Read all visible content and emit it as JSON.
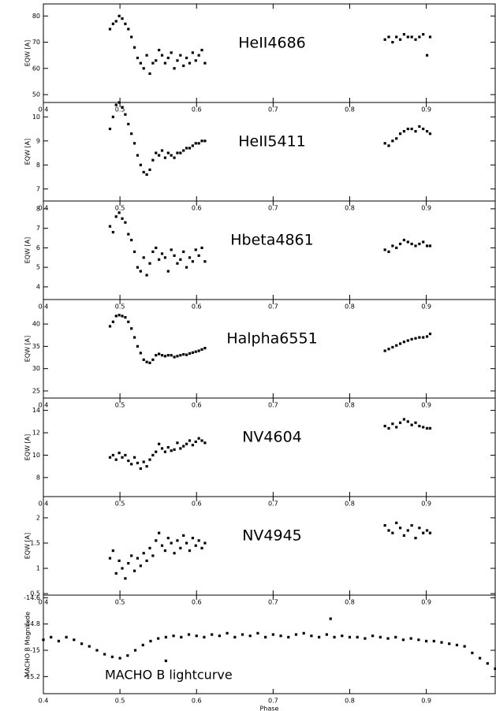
{
  "chart_data": [
    {
      "type": "scatter",
      "title": "HeII4686",
      "ylabel": "EQW [A]",
      "color": "#000000",
      "xlim": [
        0.4,
        0.99
      ],
      "ylim": [
        47,
        84.6
      ],
      "xticks": [
        0.4,
        0.5,
        0.6,
        0.7,
        0.8,
        0.9
      ],
      "yticks": [
        50,
        60,
        70,
        80
      ],
      "x": [
        0.487,
        0.491,
        0.495,
        0.499,
        0.503,
        0.507,
        0.511,
        0.515,
        0.519,
        0.523,
        0.527,
        0.531,
        0.535,
        0.539,
        0.543,
        0.547,
        0.551,
        0.555,
        0.559,
        0.563,
        0.567,
        0.571,
        0.575,
        0.579,
        0.583,
        0.587,
        0.591,
        0.595,
        0.599,
        0.603,
        0.607,
        0.611,
        0.846,
        0.851,
        0.856,
        0.861,
        0.866,
        0.871,
        0.876,
        0.881,
        0.886,
        0.891,
        0.896,
        0.901,
        0.905
      ],
      "y": [
        75,
        77,
        78,
        80,
        79,
        77,
        75,
        72,
        68,
        64,
        62,
        60,
        65,
        58,
        62,
        63,
        67,
        65,
        62,
        64,
        66,
        60,
        63,
        65,
        61,
        64,
        62,
        66,
        63,
        65,
        67,
        62,
        71,
        72,
        70,
        72,
        71,
        73,
        72,
        72,
        71,
        72,
        73,
        65,
        72
      ]
    },
    {
      "type": "scatter",
      "title": "HeII5411",
      "ylabel": "EQW [A]",
      "color": "#000000",
      "xlim": [
        0.4,
        0.99
      ],
      "ylim": [
        6.5,
        10.6
      ],
      "xticks": [
        0.4,
        0.5,
        0.6,
        0.7,
        0.8,
        0.9
      ],
      "yticks": [
        7,
        8,
        9,
        10
      ],
      "x": [
        0.487,
        0.491,
        0.495,
        0.499,
        0.503,
        0.507,
        0.511,
        0.515,
        0.519,
        0.523,
        0.527,
        0.531,
        0.535,
        0.539,
        0.543,
        0.547,
        0.551,
        0.555,
        0.559,
        0.563,
        0.567,
        0.571,
        0.575,
        0.579,
        0.583,
        0.587,
        0.591,
        0.595,
        0.599,
        0.603,
        0.607,
        0.611,
        0.846,
        0.851,
        0.856,
        0.861,
        0.866,
        0.871,
        0.876,
        0.881,
        0.886,
        0.891,
        0.896,
        0.901,
        0.905
      ],
      "y": [
        9.5,
        10.0,
        10.5,
        10.6,
        10.4,
        10.1,
        9.7,
        9.3,
        8.9,
        8.4,
        8.0,
        7.7,
        7.6,
        7.8,
        8.2,
        8.5,
        8.4,
        8.6,
        8.3,
        8.5,
        8.4,
        8.3,
        8.5,
        8.5,
        8.6,
        8.7,
        8.7,
        8.8,
        8.9,
        8.9,
        9.0,
        9.0,
        8.9,
        8.8,
        9.0,
        9.1,
        9.3,
        9.4,
        9.5,
        9.5,
        9.4,
        9.6,
        9.5,
        9.4,
        9.3
      ]
    },
    {
      "type": "scatter",
      "title": "Hbeta4861",
      "ylabel": "EQW [A]",
      "color": "#000000",
      "xlim": [
        0.4,
        0.99
      ],
      "ylim": [
        3.35,
        8.4
      ],
      "xticks": [
        0.4,
        0.5,
        0.6,
        0.7,
        0.8,
        0.9
      ],
      "yticks": [
        4,
        5,
        6,
        7,
        8
      ],
      "x": [
        0.487,
        0.491,
        0.495,
        0.499,
        0.503,
        0.507,
        0.511,
        0.515,
        0.519,
        0.523,
        0.527,
        0.531,
        0.535,
        0.539,
        0.543,
        0.547,
        0.551,
        0.555,
        0.559,
        0.563,
        0.567,
        0.571,
        0.575,
        0.579,
        0.583,
        0.587,
        0.591,
        0.595,
        0.599,
        0.603,
        0.607,
        0.611,
        0.846,
        0.851,
        0.856,
        0.861,
        0.866,
        0.871,
        0.876,
        0.881,
        0.886,
        0.891,
        0.896,
        0.901,
        0.905
      ],
      "y": [
        7.1,
        6.8,
        7.6,
        7.8,
        7.5,
        7.3,
        6.7,
        6.4,
        5.8,
        5.0,
        4.8,
        5.5,
        4.6,
        5.2,
        5.8,
        6.0,
        5.4,
        5.7,
        5.5,
        4.8,
        5.9,
        5.6,
        5.2,
        5.4,
        5.8,
        5.0,
        5.5,
        5.3,
        5.9,
        5.6,
        6.0,
        5.3,
        5.9,
        5.8,
        6.1,
        6.0,
        6.2,
        6.4,
        6.3,
        6.2,
        6.1,
        6.2,
        6.3,
        6.1,
        6.1
      ]
    },
    {
      "type": "scatter",
      "title": "Halpha6551",
      "ylabel": "EQW [A]",
      "color": "#000000",
      "xlim": [
        0.4,
        0.99
      ],
      "ylim": [
        23.4,
        45.5
      ],
      "xticks": [
        0.4,
        0.5,
        0.6,
        0.7,
        0.8,
        0.9
      ],
      "yticks": [
        25,
        30,
        35,
        40
      ],
      "x": [
        0.487,
        0.491,
        0.495,
        0.499,
        0.503,
        0.507,
        0.511,
        0.515,
        0.519,
        0.523,
        0.527,
        0.531,
        0.535,
        0.539,
        0.543,
        0.547,
        0.551,
        0.555,
        0.559,
        0.563,
        0.567,
        0.571,
        0.575,
        0.579,
        0.583,
        0.587,
        0.591,
        0.595,
        0.599,
        0.603,
        0.607,
        0.611,
        0.846,
        0.851,
        0.856,
        0.861,
        0.866,
        0.871,
        0.876,
        0.881,
        0.886,
        0.891,
        0.896,
        0.901,
        0.905
      ],
      "y": [
        39.5,
        40.5,
        41.8,
        42,
        41.8,
        41.5,
        40.5,
        39,
        37,
        35,
        33.5,
        32,
        31.5,
        31.3,
        32,
        33,
        33.3,
        33,
        32.8,
        33,
        33,
        32.6,
        32.8,
        33,
        33.2,
        33.1,
        33.4,
        33.6,
        33.8,
        34,
        34.3,
        34.6,
        34,
        34.4,
        34.8,
        35.2,
        35.6,
        36,
        36.3,
        36.6,
        36.8,
        37,
        37,
        37.2,
        37.8
      ]
    },
    {
      "type": "scatter",
      "title": "NV4604",
      "ylabel": "EQW [A]",
      "color": "#000000",
      "xlim": [
        0.4,
        0.99
      ],
      "ylim": [
        6.3,
        15.1
      ],
      "xticks": [
        0.4,
        0.5,
        0.6,
        0.7,
        0.8,
        0.9
      ],
      "yticks": [
        8,
        10,
        12,
        14
      ],
      "x": [
        0.487,
        0.491,
        0.495,
        0.499,
        0.503,
        0.507,
        0.511,
        0.515,
        0.519,
        0.523,
        0.527,
        0.531,
        0.535,
        0.539,
        0.543,
        0.547,
        0.551,
        0.555,
        0.559,
        0.563,
        0.567,
        0.571,
        0.575,
        0.579,
        0.583,
        0.587,
        0.591,
        0.595,
        0.599,
        0.603,
        0.607,
        0.611,
        0.846,
        0.851,
        0.856,
        0.861,
        0.866,
        0.871,
        0.876,
        0.881,
        0.886,
        0.891,
        0.896,
        0.901,
        0.905
      ],
      "y": [
        9.8,
        10,
        9.6,
        10.2,
        9.8,
        10,
        9.5,
        9.2,
        9.8,
        9.3,
        8.8,
        9.4,
        9,
        9.6,
        10,
        10.3,
        11,
        10.6,
        10.3,
        10.7,
        10.4,
        10.5,
        11.1,
        10.6,
        10.8,
        11,
        11.3,
        10.9,
        11.2,
        11.5,
        11.3,
        11.1,
        12.6,
        12.4,
        12.8,
        12.5,
        12.9,
        13.2,
        13,
        12.7,
        12.9,
        12.6,
        12.5,
        12.4,
        12.4
      ]
    },
    {
      "type": "scatter",
      "title": "NV4945",
      "ylabel": "EQW [A]",
      "color": "#000000",
      "xlim": [
        0.4,
        0.99
      ],
      "ylim": [
        0.47,
        2.42
      ],
      "xticks": [
        0.4,
        0.5,
        0.6,
        0.7,
        0.8,
        0.9
      ],
      "yticks": [
        0.5,
        1,
        1.5,
        2
      ],
      "x": [
        0.487,
        0.491,
        0.495,
        0.499,
        0.503,
        0.507,
        0.511,
        0.515,
        0.519,
        0.523,
        0.527,
        0.531,
        0.535,
        0.539,
        0.543,
        0.547,
        0.551,
        0.555,
        0.559,
        0.563,
        0.567,
        0.571,
        0.575,
        0.579,
        0.583,
        0.587,
        0.591,
        0.595,
        0.599,
        0.603,
        0.607,
        0.611,
        0.846,
        0.851,
        0.856,
        0.861,
        0.866,
        0.871,
        0.876,
        0.881,
        0.886,
        0.891,
        0.896,
        0.901,
        0.905
      ],
      "y": [
        1.2,
        1.35,
        0.9,
        1.15,
        1.0,
        0.8,
        1.1,
        1.25,
        0.95,
        1.2,
        1.05,
        1.3,
        1.15,
        1.4,
        1.25,
        1.55,
        1.7,
        1.45,
        1.35,
        1.6,
        1.5,
        1.3,
        1.55,
        1.4,
        1.65,
        1.5,
        1.35,
        1.6,
        1.45,
        1.55,
        1.4,
        1.5,
        1.85,
        1.75,
        1.7,
        1.9,
        1.8,
        1.65,
        1.75,
        1.85,
        1.6,
        1.8,
        1.7,
        1.75,
        1.7
      ]
    },
    {
      "type": "scatter",
      "annotation": "MACHO B lightcurve",
      "ylabel": "MACHO B Magnitude",
      "xlabel": "Phase",
      "color": "#000000",
      "xlim": [
        0.4,
        0.99
      ],
      "ylim": [
        -15.33,
        -14.58
      ],
      "xticks": [
        0.4,
        0.5,
        0.6,
        0.7,
        0.8,
        0.9
      ],
      "yticks": [
        -15.2,
        -15,
        -14.8,
        -14.6
      ],
      "x": [
        0.4,
        0.41,
        0.42,
        0.43,
        0.44,
        0.45,
        0.46,
        0.47,
        0.48,
        0.49,
        0.5,
        0.51,
        0.52,
        0.53,
        0.54,
        0.55,
        0.56,
        0.57,
        0.58,
        0.59,
        0.6,
        0.61,
        0.62,
        0.63,
        0.64,
        0.65,
        0.66,
        0.67,
        0.68,
        0.69,
        0.7,
        0.71,
        0.72,
        0.73,
        0.74,
        0.75,
        0.76,
        0.77,
        0.78,
        0.79,
        0.8,
        0.81,
        0.82,
        0.83,
        0.84,
        0.85,
        0.86,
        0.87,
        0.88,
        0.89,
        0.9,
        0.91,
        0.92,
        0.93,
        0.94,
        0.95,
        0.96,
        0.97,
        0.98,
        0.99,
        0.775,
        0.56
      ],
      "y": [
        -14.92,
        -14.9,
        -14.93,
        -14.9,
        -14.92,
        -14.95,
        -14.97,
        -15.0,
        -15.03,
        -15.05,
        -15.06,
        -15.04,
        -15.0,
        -14.96,
        -14.93,
        -14.91,
        -14.9,
        -14.89,
        -14.9,
        -14.88,
        -14.89,
        -14.9,
        -14.88,
        -14.89,
        -14.87,
        -14.9,
        -14.88,
        -14.89,
        -14.87,
        -14.9,
        -14.88,
        -14.89,
        -14.9,
        -14.88,
        -14.87,
        -14.89,
        -14.9,
        -14.88,
        -14.9,
        -14.89,
        -14.9,
        -14.9,
        -14.91,
        -14.89,
        -14.9,
        -14.91,
        -14.9,
        -14.92,
        -14.91,
        -14.92,
        -14.93,
        -14.93,
        -14.94,
        -14.95,
        -14.96,
        -14.97,
        -15.02,
        -15.06,
        -15.1,
        -15.14,
        -14.76,
        -15.08
      ]
    }
  ]
}
